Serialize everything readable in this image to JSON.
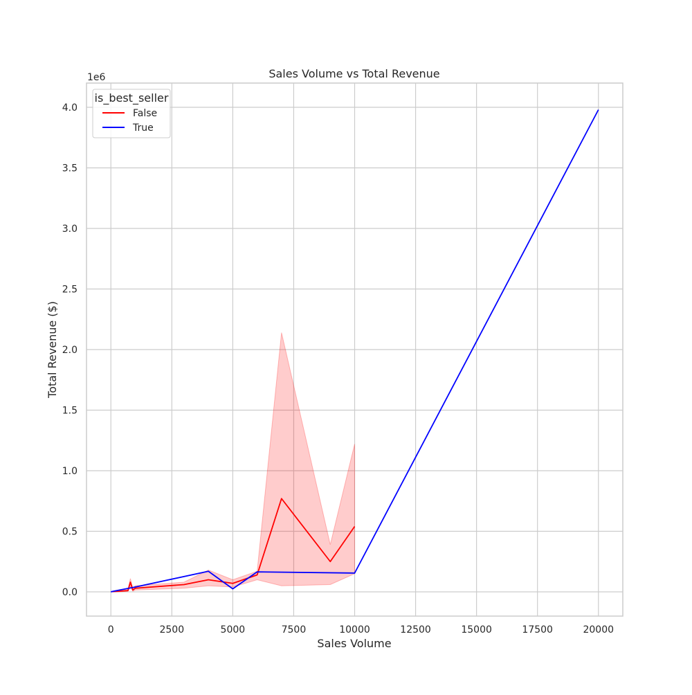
{
  "chart_data": {
    "type": "line",
    "title": "Sales Volume vs Total Revenue",
    "xlabel": "Sales Volume",
    "ylabel": "Total Revenue ($)",
    "y_scale_label": "1e6",
    "xlim": [
      -1000,
      21000
    ],
    "ylim": [
      -200000,
      4200000
    ],
    "xticks": [
      0,
      2500,
      5000,
      7500,
      10000,
      12500,
      15000,
      17500,
      20000
    ],
    "xtick_labels": [
      "0",
      "2500",
      "5000",
      "7500",
      "10000",
      "12500",
      "15000",
      "17500",
      "20000"
    ],
    "yticks": [
      0,
      500000,
      1000000,
      1500000,
      2000000,
      2500000,
      3000000,
      3500000,
      4000000
    ],
    "ytick_labels": [
      "0.0",
      "0.5",
      "1.0",
      "1.5",
      "2.0",
      "2.5",
      "3.0",
      "3.5",
      "4.0"
    ],
    "grid": true,
    "legend": {
      "title": "is_best_seller",
      "placement": "top-left"
    },
    "series": [
      {
        "name": "False",
        "color": "#ff0000",
        "band_color": "#ff0000",
        "x": [
          50,
          300,
          700,
          800,
          900,
          1000,
          3000,
          4000,
          5000,
          6000,
          7000,
          9000,
          10000
        ],
        "y": [
          2000,
          5000,
          10000,
          80000,
          15000,
          30000,
          60000,
          100000,
          70000,
          140000,
          770000,
          250000,
          540000
        ],
        "ci_low": [
          0,
          0,
          5000,
          40000,
          5000,
          15000,
          30000,
          50000,
          40000,
          100000,
          50000,
          60000,
          150000
        ],
        "ci_high": [
          5000,
          10000,
          20000,
          110000,
          30000,
          50000,
          80000,
          180000,
          100000,
          170000,
          2140000,
          390000,
          1220000
        ]
      },
      {
        "name": "True",
        "color": "#0000ff",
        "x": [
          0,
          100,
          1000,
          4000,
          5000,
          6000,
          10000,
          20000
        ],
        "y": [
          0,
          5000,
          40000,
          170000,
          25000,
          165000,
          155000,
          3980000
        ]
      }
    ]
  }
}
